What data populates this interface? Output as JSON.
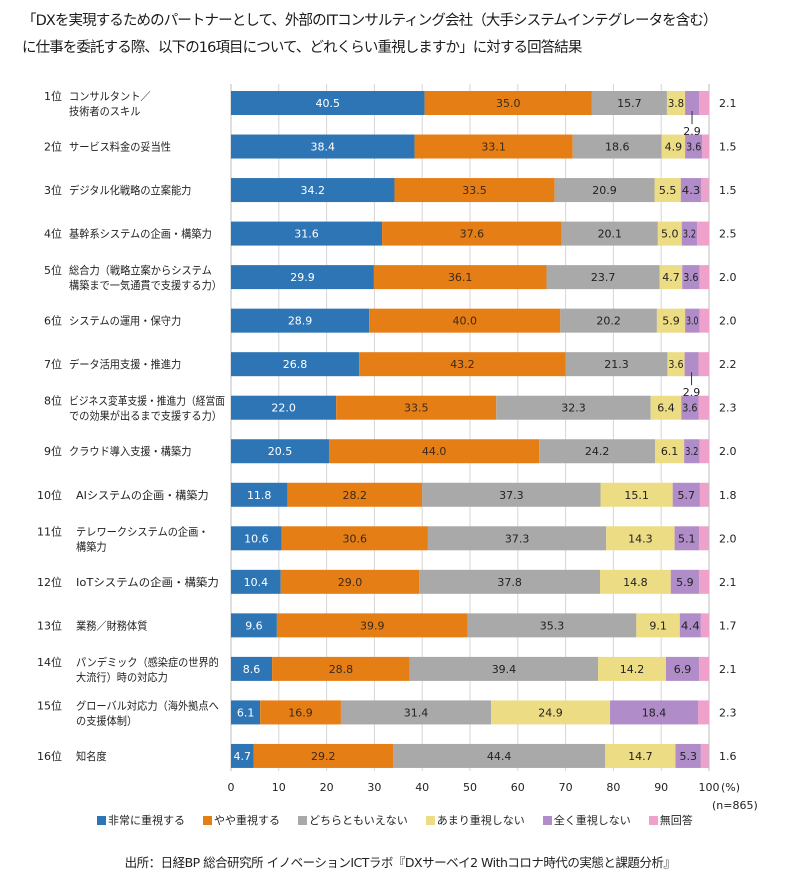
{
  "chart_data": {
    "type": "bar",
    "orientation": "horizontal",
    "stacked": true,
    "title_lines": [
      "「DXを実現するためのパートナーとして、外部のITコンサルティング会社（大手システムインテグレータを含む）",
      "に仕事を委託する際、以下の16項目について、どれくらい重視しますか」に対する回答結果"
    ],
    "xlabel": "",
    "x_unit_label": "(%)",
    "xlim": [
      0,
      100
    ],
    "xticks": [
      0,
      10,
      20,
      30,
      40,
      50,
      60,
      70,
      80,
      90,
      100
    ],
    "grid": true,
    "sample_note": "(n=865)",
    "legend_position": "bottom",
    "categories": [
      {
        "rank": "1位",
        "lines": [
          "コンサルタント／",
          "技術者のスキル"
        ]
      },
      {
        "rank": "2位",
        "lines": [
          "サービス料金の妥当性"
        ]
      },
      {
        "rank": "3位",
        "lines": [
          "デジタル化戦略の立案能力"
        ]
      },
      {
        "rank": "4位",
        "lines": [
          "基幹系システムの企画・構築力"
        ]
      },
      {
        "rank": "5位",
        "lines": [
          "総合力（戦略立案からシステム",
          "構築まで一気通貫で支援する力）"
        ]
      },
      {
        "rank": "6位",
        "lines": [
          "システムの運用・保守力"
        ]
      },
      {
        "rank": "7位",
        "lines": [
          "データ活用支援・推進力"
        ]
      },
      {
        "rank": "8位",
        "lines": [
          "ビジネス変革支援・推進力（経営面",
          "での効果が出るまで支援する力）"
        ]
      },
      {
        "rank": "9位",
        "lines": [
          "クラウド導入支援・構築力"
        ]
      },
      {
        "rank": "10位",
        "lines": [
          "AIシステムの企画・構築力"
        ]
      },
      {
        "rank": "11位",
        "lines": [
          "テレワークシステムの企画・",
          "構築力"
        ]
      },
      {
        "rank": "12位",
        "lines": [
          "IoTシステムの企画・構築力"
        ]
      },
      {
        "rank": "13位",
        "lines": [
          "業務／財務体質"
        ]
      },
      {
        "rank": "14位",
        "lines": [
          "パンデミック（感染症の世界的",
          "大流行）時の対応力"
        ]
      },
      {
        "rank": "15位",
        "lines": [
          "グローバル対応力（海外拠点へ",
          "の支援体制）"
        ]
      },
      {
        "rank": "16位",
        "lines": [
          "知名度"
        ]
      }
    ],
    "series": [
      {
        "name": "非常に重視する",
        "color": "#2e75b6",
        "label_color": "#ffffff",
        "values": [
          40.5,
          38.4,
          34.2,
          31.6,
          29.9,
          28.9,
          26.8,
          22.0,
          20.5,
          11.8,
          10.6,
          10.4,
          9.6,
          8.6,
          6.1,
          4.7
        ]
      },
      {
        "name": "やや重視する",
        "color": "#e67e16",
        "label_color": "#3a2a1a",
        "values": [
          35.0,
          33.1,
          33.5,
          37.6,
          36.1,
          40.0,
          43.2,
          33.5,
          44.0,
          28.2,
          30.6,
          29.0,
          39.9,
          28.8,
          16.9,
          29.2
        ]
      },
      {
        "name": "どちらともいえない",
        "color": "#a9a9a9",
        "label_color": "#222222",
        "values": [
          15.7,
          18.6,
          20.9,
          20.1,
          23.7,
          20.2,
          21.3,
          32.3,
          24.2,
          37.3,
          37.3,
          37.8,
          35.3,
          39.4,
          31.4,
          44.4
        ]
      },
      {
        "name": "あまり重視しない",
        "color": "#ecdc84",
        "label_color": "#222222",
        "values": [
          3.8,
          4.9,
          5.5,
          5.0,
          4.7,
          5.9,
          3.6,
          6.4,
          6.1,
          15.1,
          14.3,
          14.8,
          9.1,
          14.2,
          24.9,
          14.7
        ]
      },
      {
        "name": "全く重視しない",
        "color": "#b08cc8",
        "label_color": "#222222",
        "values": [
          2.9,
          3.6,
          4.3,
          3.2,
          3.6,
          3.0,
          2.9,
          3.6,
          3.2,
          5.7,
          5.1,
          5.9,
          4.4,
          6.9,
          18.4,
          5.3
        ]
      },
      {
        "name": "無回答",
        "color": "#eea1cb",
        "label_color": "#222222",
        "values": [
          2.1,
          1.5,
          1.5,
          2.5,
          2.0,
          2.0,
          2.2,
          2.3,
          2.0,
          1.8,
          2.0,
          2.1,
          1.7,
          2.1,
          2.3,
          1.6
        ]
      }
    ],
    "callouts": [
      {
        "category_index": 0,
        "series_index": 4,
        "text": "2.9"
      },
      {
        "category_index": 6,
        "series_index": 4,
        "text": "2.9"
      }
    ]
  },
  "source": "出所：日経BP 総合研究所 イノベーションICTラボ『DXサーベイ2 Withコロナ時代の実態と課題分析』"
}
